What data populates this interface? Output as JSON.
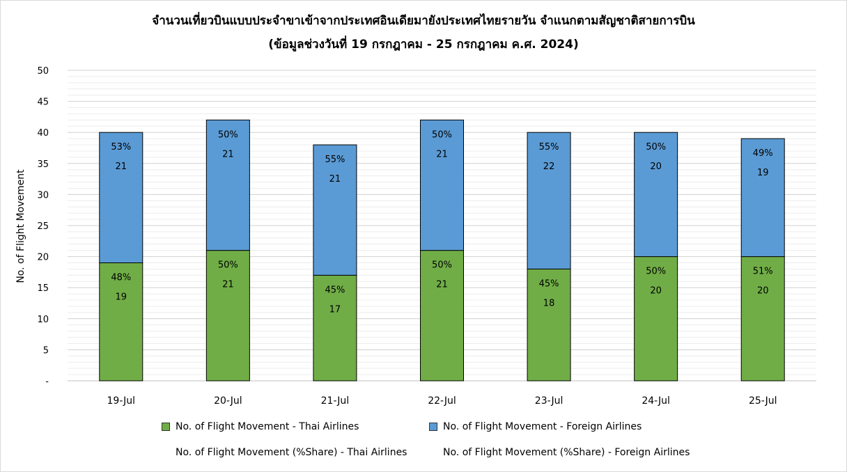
{
  "chart_data": {
    "type": "bar",
    "stacked": true,
    "title": "จำนวนเที่ยวบินแบบประจำขาเข้าจากประเทศอินเดียมายังประเทศไทยรายวัน  จำแนกตามสัญชาติสายการบิน",
    "subtitle": "(ข้อมูลช่วงวันที่ 19 กรกฎาคม - 25 กรกฎาคม ค.ศ. 2024)",
    "xlabel": "",
    "ylabel": "No. of Flight Movement",
    "ylim": [
      0,
      50
    ],
    "yticks": [
      "-",
      "5",
      "10",
      "15",
      "20",
      "25",
      "30",
      "35",
      "40",
      "45",
      "50"
    ],
    "grid": true,
    "legend_position": "bottom",
    "categories": [
      "19-Jul",
      "20-Jul",
      "21-Jul",
      "22-Jul",
      "23-Jul",
      "24-Jul",
      "25-Jul"
    ],
    "series": [
      {
        "name": "No. of Flight Movement - Thai Airlines",
        "color": "#70ad47",
        "values": [
          19,
          21,
          17,
          21,
          18,
          20,
          20
        ],
        "labels": [
          "19",
          "21",
          "17",
          "21",
          "18",
          "20",
          "20"
        ]
      },
      {
        "name": "No. of Flight Movement - Foreign Airlines",
        "color": "#5b9bd5",
        "values": [
          21,
          21,
          21,
          21,
          22,
          20,
          19
        ],
        "labels": [
          "21",
          "21",
          "21",
          "21",
          "22",
          "20",
          "19"
        ]
      }
    ],
    "share_series": [
      {
        "name": "No. of Flight Movement (%Share) - Thai Airlines",
        "labels": [
          "48%",
          "50%",
          "45%",
          "50%",
          "45%",
          "50%",
          "51%"
        ]
      },
      {
        "name": "No. of Flight Movement (%Share) - Foreign Airlines",
        "labels": [
          "53%",
          "50%",
          "55%",
          "50%",
          "55%",
          "50%",
          "49%"
        ]
      }
    ]
  }
}
